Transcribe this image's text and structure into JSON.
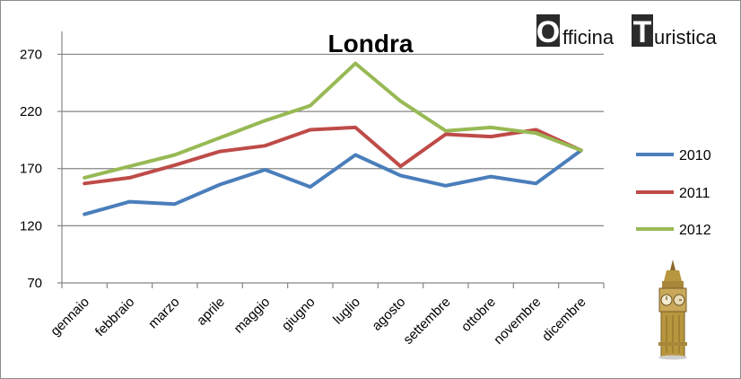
{
  "brand": {
    "logo_first_letter": "O",
    "logo_first_rest": "fficina ",
    "logo_second_letter": "T",
    "logo_second_rest": "uristica",
    "logo_box_color": "#2b2b2b"
  },
  "illustration": {
    "icon": "big-ben-icon"
  },
  "chart_data": {
    "type": "line",
    "title": "Londra",
    "xlabel": "",
    "ylabel": "",
    "categories": [
      "gennaio",
      "febbraio",
      "marzo",
      "aprile",
      "maggio",
      "giugno",
      "luglio",
      "agosto",
      "settembre",
      "ottobre",
      "novembre",
      "dicembre"
    ],
    "yticks": [
      70,
      120,
      170,
      220,
      270
    ],
    "ylim": [
      70,
      290
    ],
    "grid": "horizontal",
    "legend": "right",
    "series": [
      {
        "name": "2010",
        "color": "#4a7ebb",
        "values": [
          130,
          141,
          139,
          156,
          169,
          154,
          182,
          164,
          155,
          163,
          157,
          186
        ]
      },
      {
        "name": "2011",
        "color": "#be4b48",
        "values": [
          157,
          162,
          173,
          185,
          190,
          204,
          206,
          172,
          200,
          198,
          204,
          186
        ]
      },
      {
        "name": "2012",
        "color": "#98b954",
        "values": [
          162,
          172,
          182,
          197,
          212,
          225,
          262,
          229,
          203,
          206,
          201,
          186
        ]
      }
    ]
  }
}
